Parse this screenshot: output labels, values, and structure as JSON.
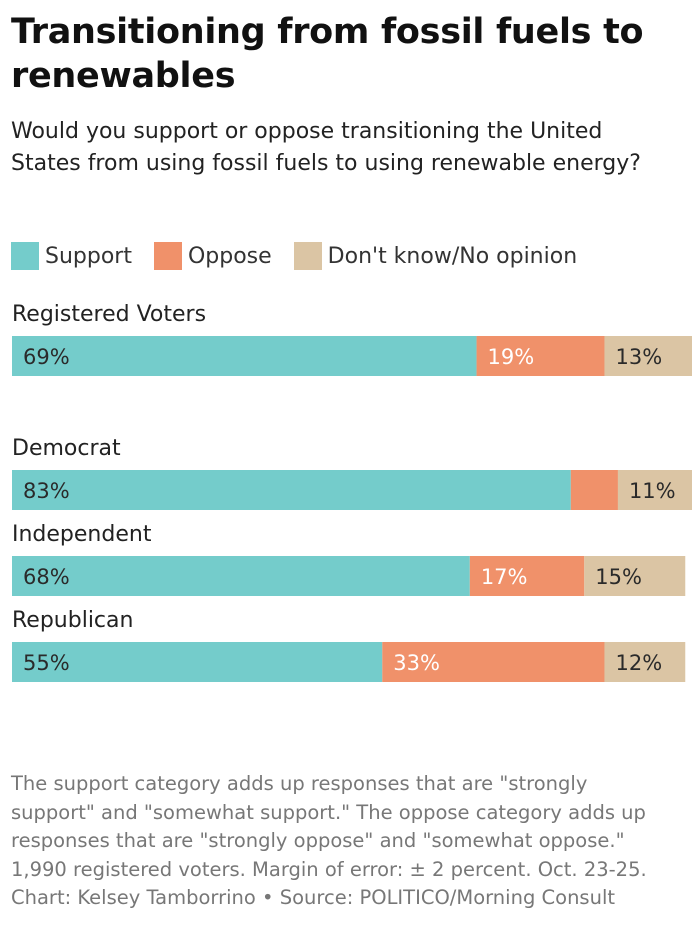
{
  "title": "Transitioning from fossil fuels to renewables",
  "subtitle": "Would you support or oppose transitioning the United States from using fossil fuels to using renewable energy?",
  "legend": [
    {
      "label": "Support",
      "color": "#74cccb"
    },
    {
      "label": "Oppose",
      "color": "#f0916a"
    },
    {
      "label": "Don't know/No opinion",
      "color": "#dbc5a4"
    }
  ],
  "chart_data": {
    "type": "bar",
    "orientation": "horizontal",
    "stacked": true,
    "title": "Transitioning from fossil fuels to renewables",
    "categories": [
      "Registered Voters",
      "Democrat",
      "Independent",
      "Republican"
    ],
    "series": [
      {
        "name": "Support",
        "values": [
          69,
          83,
          68,
          55
        ],
        "labels": [
          "69%",
          "83%",
          "68%",
          "55%"
        ]
      },
      {
        "name": "Oppose",
        "values": [
          19,
          7,
          17,
          33
        ],
        "labels": [
          "19%",
          "",
          "17%",
          "33%"
        ]
      },
      {
        "name": "Don't know/No opinion",
        "values": [
          13,
          11,
          15,
          12
        ],
        "labels": [
          "13%",
          "11%",
          "15%",
          "12%"
        ]
      }
    ],
    "xlim": [
      0,
      101
    ],
    "unit": "percent"
  },
  "footnote": {
    "lines": [
      "The support category adds up responses that are \"strongly",
      "support\" and \"somewhat support.\" The oppose category adds up",
      "responses that are \"strongly oppose\" and \"somewhat oppose.\"",
      "1,990 registered voters. Margin of error: ± 2 percent. Oct. 23-25.",
      "Chart: Kelsey Tamborrino • Source: POLITICO/Morning Consult"
    ]
  }
}
